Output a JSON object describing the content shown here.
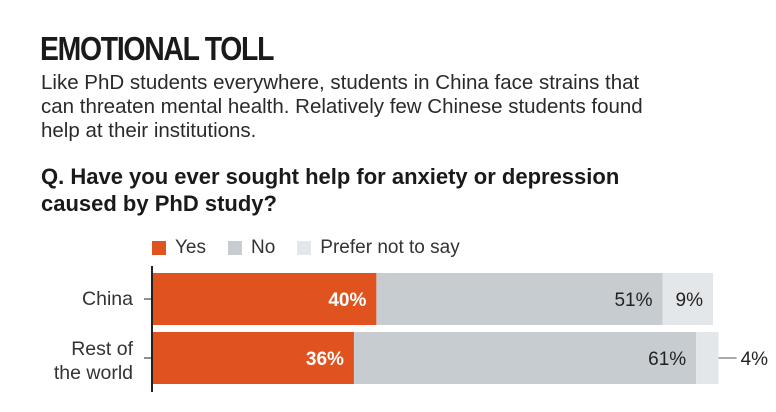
{
  "title": "EMOTIONAL TOLL",
  "subtitle": "Like PhD students everywhere, students in China face strains that can threaten mental health. Relatively few Chinese students found help at their institutions.",
  "question": "Q. Have you ever sought help for anxiety or depression caused by PhD study?",
  "colors": {
    "yes": "#e0531f",
    "no": "#c7ccd1",
    "prefer": "#e4e7ea",
    "axis": "#222222"
  },
  "chart_data": {
    "type": "bar",
    "orientation": "horizontal",
    "stacked": true,
    "title": "",
    "categories": [
      "China",
      "Rest of the world"
    ],
    "series": [
      {
        "name": "Yes",
        "values": [
          40,
          36
        ],
        "labels": [
          "40%",
          "36%"
        ]
      },
      {
        "name": "No",
        "values": [
          51,
          61
        ],
        "labels": [
          "51%",
          "61%"
        ]
      },
      {
        "name": "Prefer not to say",
        "values": [
          9,
          4
        ],
        "labels": [
          "9%",
          "4%"
        ]
      }
    ],
    "xlim": [
      0,
      100
    ],
    "unit": "%",
    "legend": "top",
    "grid": false
  }
}
